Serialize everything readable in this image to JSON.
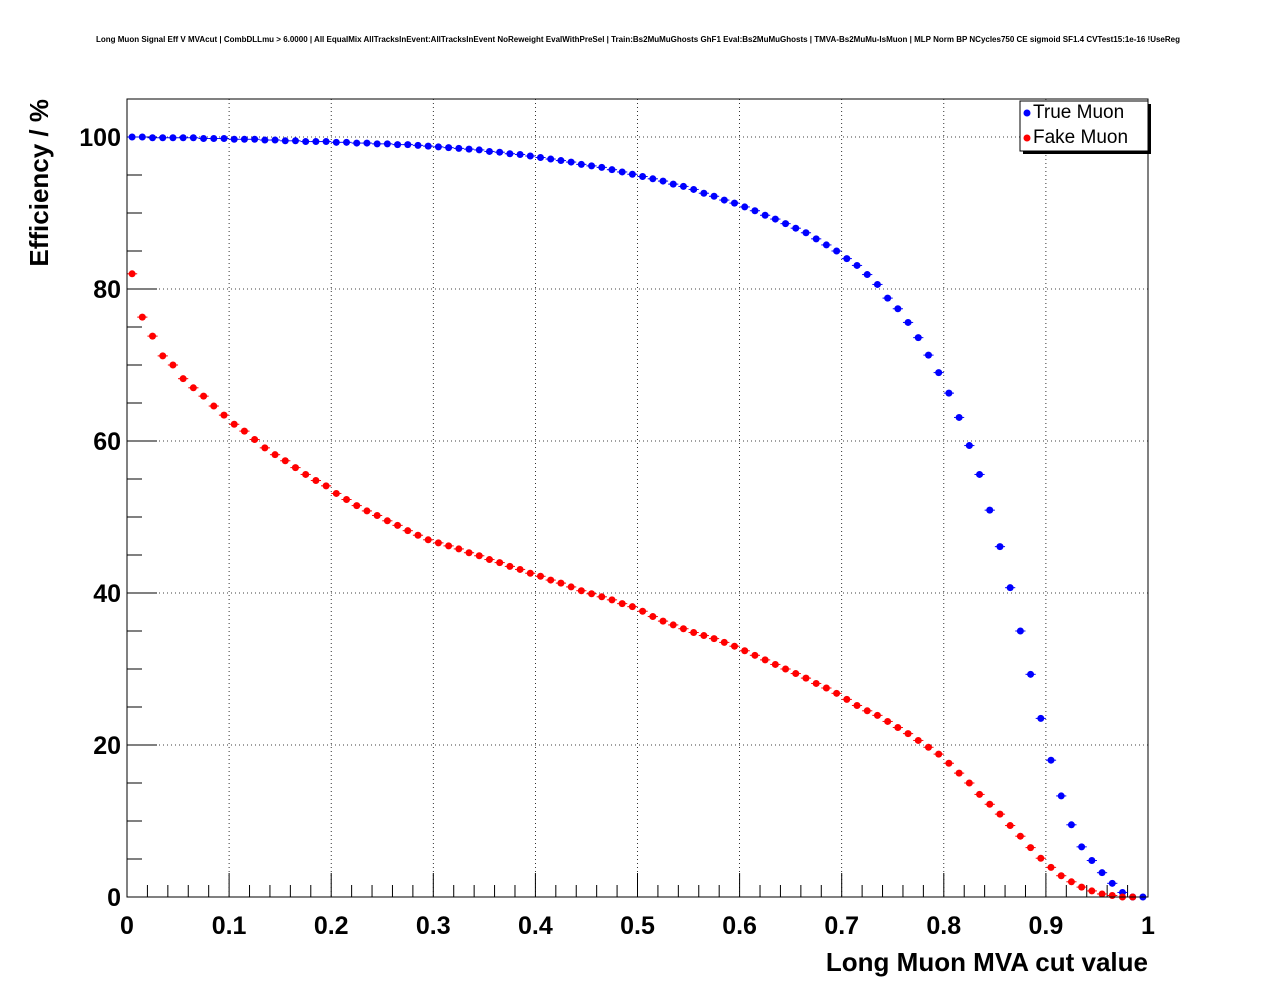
{
  "chart_data": {
    "type": "scatter",
    "title": "Long Muon Signal Eff V MVAcut | CombDLLmu > 6.0000 | All EqualMix AllTracksInEvent:AllTracksInEvent NoReweight EvalWithPreSel | Train:Bs2MuMuGhosts GhF1 Eval:Bs2MuMuGhosts | TMVA-Bs2MuMu-IsMuon | MLP Norm BP NCycles750 CE sigmoid SF1.4 CVTest15:1e-16 !UseReg",
    "xlabel": "Long Muon MVA cut value",
    "ylabel": "Efficiency / %",
    "xlim": [
      0,
      1
    ],
    "ylim": [
      0,
      105
    ],
    "xticks": [
      0,
      0.1,
      0.2,
      0.3,
      0.4,
      0.5,
      0.6,
      0.7,
      0.8,
      0.9,
      1
    ],
    "xtick_labels": [
      "0",
      "0.1",
      "0.2",
      "0.3",
      "0.4",
      "0.5",
      "0.6",
      "0.7",
      "0.8",
      "0.9",
      "1"
    ],
    "yticks": [
      0,
      20,
      40,
      60,
      80,
      100
    ],
    "ytick_labels": [
      "0",
      "20",
      "40",
      "60",
      "80",
      "100"
    ],
    "grid": true,
    "legend_position": "top-right",
    "series": [
      {
        "name": "True Muon",
        "color": "#0000ff",
        "marker": "circle",
        "x": [
          0.005,
          0.015,
          0.025,
          0.035,
          0.045,
          0.055,
          0.065,
          0.075,
          0.085,
          0.095,
          0.105,
          0.115,
          0.125,
          0.135,
          0.145,
          0.155,
          0.165,
          0.175,
          0.185,
          0.195,
          0.205,
          0.215,
          0.225,
          0.235,
          0.245,
          0.255,
          0.265,
          0.275,
          0.285,
          0.295,
          0.305,
          0.315,
          0.325,
          0.335,
          0.345,
          0.355,
          0.365,
          0.375,
          0.385,
          0.395,
          0.405,
          0.415,
          0.425,
          0.435,
          0.445,
          0.455,
          0.465,
          0.475,
          0.485,
          0.495,
          0.505,
          0.515,
          0.525,
          0.535,
          0.545,
          0.555,
          0.565,
          0.575,
          0.585,
          0.595,
          0.605,
          0.615,
          0.625,
          0.635,
          0.645,
          0.655,
          0.665,
          0.675,
          0.685,
          0.695,
          0.705,
          0.715,
          0.725,
          0.735,
          0.745,
          0.755,
          0.765,
          0.775,
          0.785,
          0.795,
          0.805,
          0.815,
          0.825,
          0.835,
          0.845,
          0.855,
          0.865,
          0.875,
          0.885,
          0.895,
          0.905,
          0.915,
          0.925,
          0.935,
          0.945,
          0.955,
          0.965,
          0.975,
          0.985,
          0.995
        ],
        "y": [
          100.0,
          100.0,
          99.9,
          99.9,
          99.9,
          99.9,
          99.9,
          99.8,
          99.8,
          99.8,
          99.7,
          99.7,
          99.7,
          99.6,
          99.6,
          99.5,
          99.5,
          99.4,
          99.4,
          99.4,
          99.3,
          99.3,
          99.2,
          99.2,
          99.1,
          99.1,
          99.0,
          99.0,
          98.9,
          98.8,
          98.7,
          98.6,
          98.5,
          98.4,
          98.3,
          98.1,
          98.0,
          97.8,
          97.7,
          97.5,
          97.3,
          97.1,
          96.9,
          96.7,
          96.4,
          96.2,
          96.0,
          95.7,
          95.4,
          95.1,
          94.8,
          94.5,
          94.2,
          93.8,
          93.5,
          93.1,
          92.6,
          92.2,
          91.7,
          91.3,
          90.8,
          90.3,
          89.7,
          89.2,
          88.6,
          88.0,
          87.4,
          86.6,
          85.8,
          85.0,
          84.0,
          83.1,
          81.9,
          80.6,
          78.8,
          77.4,
          75.6,
          73.6,
          71.3,
          69.0,
          66.3,
          63.1,
          59.4,
          55.6,
          50.9,
          46.1,
          40.7,
          35.0,
          29.3,
          23.5,
          18.0,
          13.3,
          9.5,
          6.6,
          4.8,
          3.2,
          1.8,
          0.6,
          0.0,
          0.0
        ]
      },
      {
        "name": "Fake Muon",
        "color": "#ff0000",
        "marker": "circle",
        "x": [
          0.005,
          0.015,
          0.025,
          0.035,
          0.045,
          0.055,
          0.065,
          0.075,
          0.085,
          0.095,
          0.105,
          0.115,
          0.125,
          0.135,
          0.145,
          0.155,
          0.165,
          0.175,
          0.185,
          0.195,
          0.205,
          0.215,
          0.225,
          0.235,
          0.245,
          0.255,
          0.265,
          0.275,
          0.285,
          0.295,
          0.305,
          0.315,
          0.325,
          0.335,
          0.345,
          0.355,
          0.365,
          0.375,
          0.385,
          0.395,
          0.405,
          0.415,
          0.425,
          0.435,
          0.445,
          0.455,
          0.465,
          0.475,
          0.485,
          0.495,
          0.505,
          0.515,
          0.525,
          0.535,
          0.545,
          0.555,
          0.565,
          0.575,
          0.585,
          0.595,
          0.605,
          0.615,
          0.625,
          0.635,
          0.645,
          0.655,
          0.665,
          0.675,
          0.685,
          0.695,
          0.705,
          0.715,
          0.725,
          0.735,
          0.745,
          0.755,
          0.765,
          0.775,
          0.785,
          0.795,
          0.805,
          0.815,
          0.825,
          0.835,
          0.845,
          0.855,
          0.865,
          0.875,
          0.885,
          0.895,
          0.905,
          0.915,
          0.925,
          0.935,
          0.945,
          0.955,
          0.965,
          0.975,
          0.985
        ],
        "y": [
          82.0,
          76.3,
          73.8,
          71.2,
          70.0,
          68.2,
          67.0,
          65.9,
          64.6,
          63.4,
          62.2,
          61.3,
          60.2,
          59.1,
          58.2,
          57.4,
          56.5,
          55.6,
          54.8,
          54.1,
          53.1,
          52.3,
          51.5,
          50.8,
          50.2,
          49.5,
          48.9,
          48.2,
          47.6,
          47.0,
          46.6,
          46.2,
          45.8,
          45.3,
          44.9,
          44.4,
          44.0,
          43.5,
          43.1,
          42.6,
          42.2,
          41.7,
          41.3,
          40.8,
          40.3,
          39.9,
          39.5,
          39.1,
          38.6,
          38.2,
          37.6,
          36.9,
          36.3,
          35.8,
          35.3,
          34.8,
          34.4,
          34.0,
          33.5,
          33.0,
          32.4,
          31.8,
          31.2,
          30.6,
          30.0,
          29.4,
          28.8,
          28.1,
          27.5,
          26.8,
          26.0,
          25.2,
          24.5,
          23.9,
          23.1,
          22.3,
          21.5,
          20.6,
          19.7,
          18.8,
          17.6,
          16.3,
          15.0,
          13.5,
          12.2,
          10.9,
          9.4,
          8.0,
          6.5,
          5.1,
          3.9,
          2.8,
          2.0,
          1.3,
          0.8,
          0.4,
          0.2,
          0.0,
          0.0
        ]
      }
    ]
  }
}
